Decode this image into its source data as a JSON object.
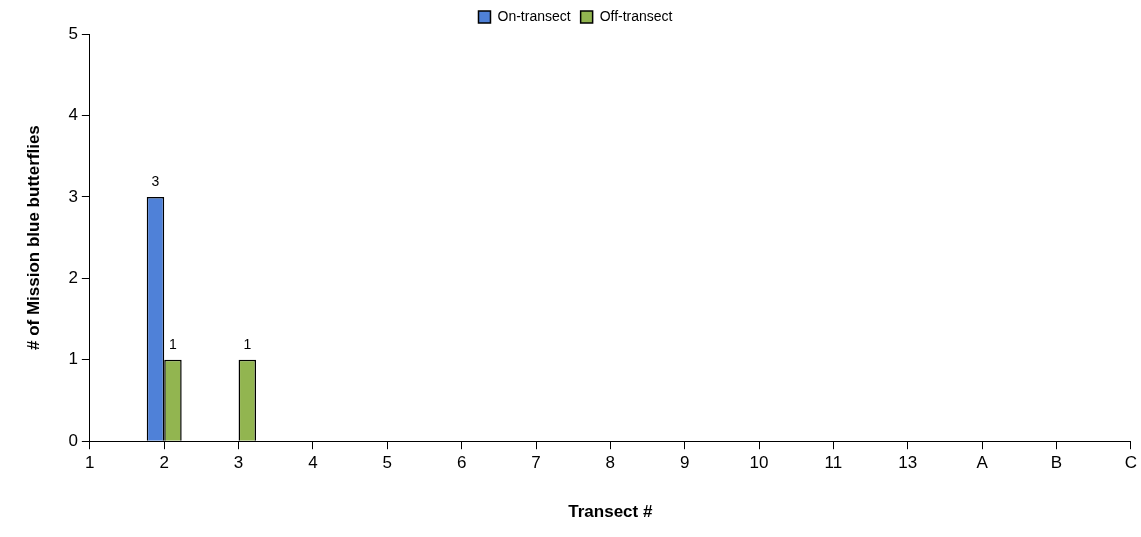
{
  "chart_data": {
    "type": "bar",
    "xlabel": "Transect #",
    "ylabel": "# of Mission blue butterflies",
    "categories": [
      "1",
      "2",
      "3",
      "4",
      "5",
      "6",
      "7",
      "8",
      "9",
      "10",
      "11",
      "13",
      "A",
      "B",
      "C"
    ],
    "series": [
      {
        "name": "On-transect",
        "color": "#4f81d8",
        "values": [
          0,
          3,
          0,
          0,
          0,
          0,
          0,
          0,
          0,
          0,
          0,
          0,
          0,
          0,
          0
        ],
        "value_labels": [
          null,
          "3",
          null,
          null,
          null,
          null,
          null,
          null,
          null,
          null,
          null,
          null,
          null,
          null,
          null
        ]
      },
      {
        "name": "Off-transect",
        "color": "#92b550",
        "values": [
          0,
          1,
          1,
          0,
          0,
          0,
          0,
          0,
          0,
          0,
          0,
          0,
          0,
          0,
          0
        ],
        "value_labels": [
          null,
          "1",
          "1",
          null,
          null,
          null,
          null,
          null,
          null,
          null,
          null,
          null,
          null,
          null,
          null
        ]
      }
    ],
    "ylim": [
      0,
      5
    ],
    "yticks": [
      0,
      1,
      2,
      3,
      4,
      5
    ],
    "grid": false,
    "legend": "top"
  }
}
